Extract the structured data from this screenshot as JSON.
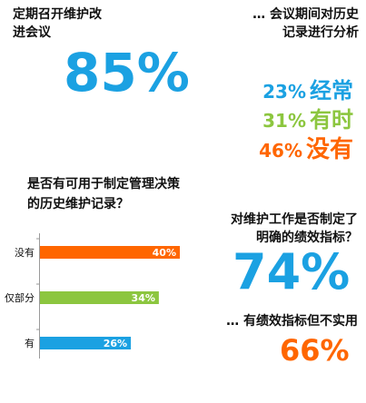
{
  "q1": {
    "line1": "定期召开维护改",
    "line2": "进会议",
    "value": "85%",
    "color": "#1ba1e2"
  },
  "q2": {
    "line1": "… 会议期间对历史",
    "line2": "记录进行分析",
    "items": [
      {
        "pct": "23%",
        "word": "经常",
        "color": "#1ba1e2"
      },
      {
        "pct": "31%",
        "word": "有时",
        "color": "#8cc63f"
      },
      {
        "pct": "46%",
        "word": "没有",
        "color": "#ff6600"
      }
    ]
  },
  "q3": {
    "line1": "是否有可用于制定管理决策",
    "line2": "的历史维护记录？"
  },
  "q4": {
    "line1": "对维护工作是否制定了",
    "line2": "明确的绩效指标？",
    "value": "74%",
    "color": "#1ba1e2"
  },
  "q5": {
    "text": "… 有绩效指标但不实用",
    "value": "66%",
    "color": "#ff6600"
  },
  "chart_data": {
    "type": "bar",
    "orientation": "horizontal",
    "title": "是否有可用于制定管理决策的历史维护记录？",
    "categories": [
      "没有",
      "仅部分",
      "有"
    ],
    "values": [
      40,
      34,
      26
    ],
    "value_labels": [
      "40%",
      "34%",
      "26%"
    ],
    "colors": [
      "#ff6600",
      "#8cc63f",
      "#1ba1e2"
    ],
    "xlim": [
      0,
      40
    ],
    "grid": false,
    "legend": "none"
  }
}
